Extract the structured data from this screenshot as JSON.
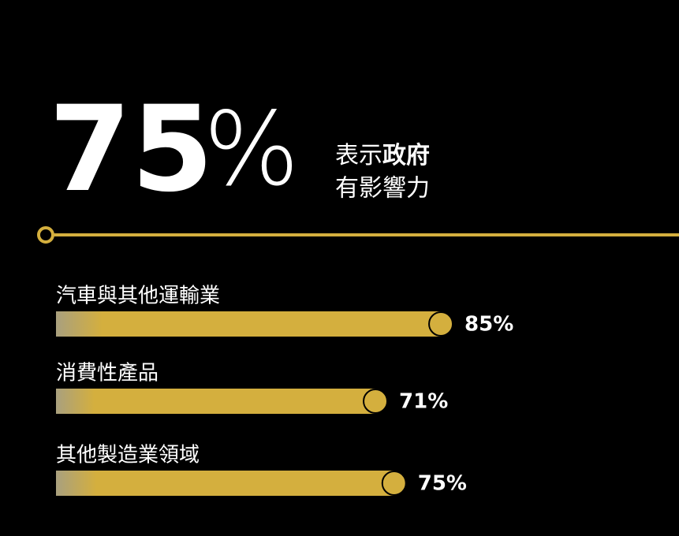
{
  "chart_data": {
    "type": "bar",
    "headline_number": "75",
    "headline_symbol": "%",
    "headline_text": [
      "表示",
      "政府",
      "有影響力"
    ],
    "categories": [
      "汽車與其他運輸業",
      "消費性產品",
      "其他製造業領域"
    ],
    "values": [
      85,
      71,
      75
    ],
    "value_labels": [
      "85%",
      "71%",
      "75%"
    ],
    "color": "#d4af3e",
    "background": "#000000"
  }
}
